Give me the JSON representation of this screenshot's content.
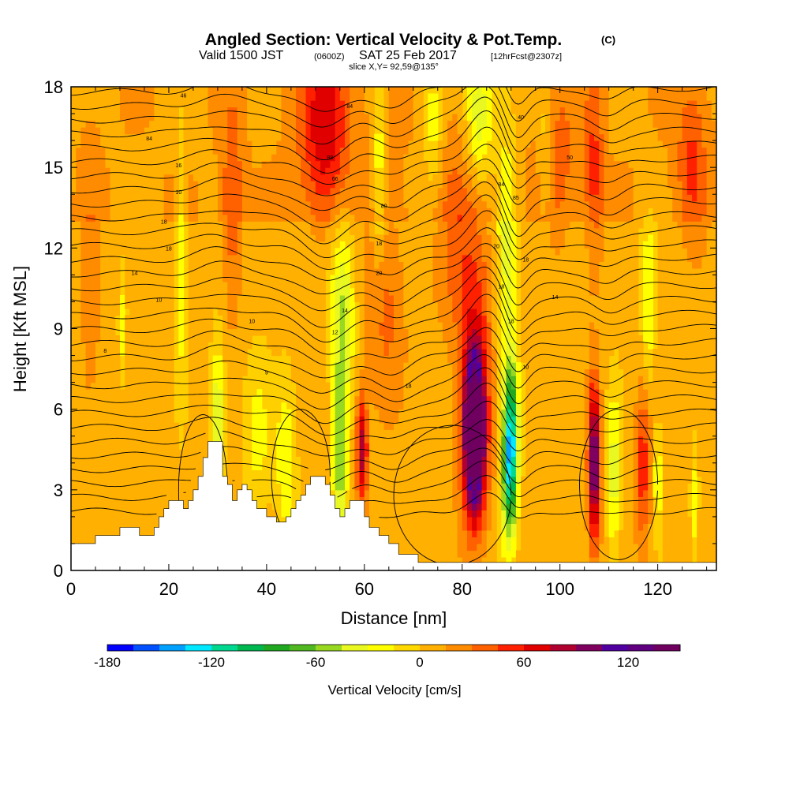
{
  "chart_data": {
    "type": "heatmap",
    "title": "Angled Section: Vertical Velocity & Pot.Temp.",
    "title_units": "(C)",
    "subtitle_main_a": "Valid 1500 JST",
    "subtitle_utc": "(0600Z)",
    "subtitle_main_b": "SAT 25 Feb 2017",
    "subtitle_fcst": "[12hrFcst@2307z]",
    "slice": "slice X,Y= 92,59@135°",
    "xlabel": "Distance [nm]",
    "ylabel": "Height [Kft MSL]",
    "xlim": [
      0,
      132
    ],
    "ylim": [
      0,
      18
    ],
    "xticks": [
      0,
      20,
      40,
      60,
      80,
      100,
      120
    ],
    "yticks": [
      0,
      3,
      6,
      9,
      12,
      15,
      18
    ],
    "colorbar": {
      "label": "Vertical Velocity [cm/s]",
      "min": -180,
      "max": 150,
      "step": 15,
      "tick_values": [
        -180,
        -120,
        -60,
        0,
        60,
        120
      ],
      "tick_labels": [
        "-180",
        "-120",
        "-60",
        "0",
        "60",
        "120"
      ],
      "colors": [
        "#0000ff",
        "#0050ff",
        "#00a0ff",
        "#00e8ff",
        "#00d890",
        "#00b850",
        "#20a820",
        "#50b820",
        "#98d820",
        "#e8f820",
        "#ffff00",
        "#ffd800",
        "#ffb000",
        "#ff8c00",
        "#ff6000",
        "#ff2000",
        "#e00000",
        "#b00030",
        "#800060",
        "#5000a0",
        "#600080",
        "#700060"
      ]
    },
    "terrain_profile": [
      [
        0,
        1.0
      ],
      [
        5,
        1.0
      ],
      [
        5,
        1.3
      ],
      [
        10,
        1.3
      ],
      [
        10,
        1.6
      ],
      [
        14,
        1.6
      ],
      [
        14,
        1.3
      ],
      [
        17,
        1.3
      ],
      [
        17,
        1.6
      ],
      [
        18,
        1.6
      ],
      [
        18,
        2.0
      ],
      [
        19,
        2.0
      ],
      [
        19,
        2.3
      ],
      [
        20,
        2.3
      ],
      [
        20,
        2.6
      ],
      [
        23,
        2.6
      ],
      [
        23,
        2.3
      ],
      [
        24,
        2.3
      ],
      [
        24,
        2.6
      ],
      [
        25,
        2.6
      ],
      [
        25,
        3.0
      ],
      [
        26,
        3.0
      ],
      [
        26,
        3.5
      ],
      [
        27,
        3.5
      ],
      [
        27,
        4.2
      ],
      [
        28,
        4.2
      ],
      [
        28,
        4.8
      ],
      [
        31,
        4.8
      ],
      [
        31,
        3.5
      ],
      [
        32,
        3.5
      ],
      [
        32,
        3.2
      ],
      [
        33,
        3.2
      ],
      [
        33,
        2.6
      ],
      [
        34,
        2.6
      ],
      [
        34,
        3.0
      ],
      [
        35,
        3.0
      ],
      [
        35,
        3.2
      ],
      [
        36,
        3.2
      ],
      [
        36,
        3.0
      ],
      [
        37,
        3.0
      ],
      [
        37,
        2.6
      ],
      [
        38,
        2.6
      ],
      [
        38,
        2.3
      ],
      [
        40,
        2.3
      ],
      [
        40,
        2.0
      ],
      [
        42,
        2.0
      ],
      [
        42,
        1.8
      ],
      [
        44,
        1.8
      ],
      [
        44,
        2.0
      ],
      [
        45,
        2.0
      ],
      [
        45,
        2.3
      ],
      [
        46,
        2.3
      ],
      [
        46,
        2.6
      ],
      [
        47,
        2.6
      ],
      [
        47,
        2.8
      ],
      [
        48,
        2.8
      ],
      [
        48,
        3.2
      ],
      [
        49,
        3.2
      ],
      [
        49,
        3.5
      ],
      [
        52,
        3.5
      ],
      [
        52,
        3.2
      ],
      [
        53,
        3.2
      ],
      [
        53,
        2.8
      ],
      [
        54,
        2.8
      ],
      [
        54,
        2.3
      ],
      [
        55,
        2.3
      ],
      [
        55,
        2.0
      ],
      [
        56,
        2.0
      ],
      [
        56,
        2.3
      ],
      [
        57,
        2.3
      ],
      [
        57,
        2.6
      ],
      [
        60,
        2.6
      ],
      [
        60,
        2.0
      ],
      [
        61,
        2.0
      ],
      [
        61,
        1.6
      ],
      [
        63,
        1.6
      ],
      [
        63,
        1.3
      ],
      [
        65,
        1.3
      ],
      [
        65,
        1.0
      ],
      [
        67,
        1.0
      ],
      [
        67,
        0.6
      ],
      [
        71,
        0.6
      ],
      [
        71,
        0.3
      ],
      [
        132,
        0.3
      ]
    ],
    "vertical_velocity_features": [
      {
        "x": 82.5,
        "z": 5.0,
        "wx": 1.6,
        "wz": 2.4,
        "w": 150
      },
      {
        "x": 82.5,
        "z": 5.5,
        "wx": 3.0,
        "wz": 4.0,
        "w": 90
      },
      {
        "x": 81.0,
        "z": 12.0,
        "wx": 6.0,
        "wz": 4.0,
        "w": 35
      },
      {
        "x": 90.0,
        "z": 5.0,
        "wx": 1.4,
        "wz": 2.6,
        "w": -110
      },
      {
        "x": 89.5,
        "z": 3.0,
        "wx": 1.6,
        "wz": 2.6,
        "w": -60
      },
      {
        "x": 89.0,
        "z": 12.0,
        "wx": 2.2,
        "wz": 6.0,
        "w": -45
      },
      {
        "x": 83.5,
        "z": 17.0,
        "wx": 3.0,
        "wz": 3.0,
        "w": -60
      },
      {
        "x": 107.0,
        "z": 4.0,
        "wx": 1.2,
        "wz": 3.0,
        "w": 110
      },
      {
        "x": 107.0,
        "z": 15.0,
        "wx": 1.8,
        "wz": 4.0,
        "w": 35
      },
      {
        "x": 111.0,
        "z": 3.5,
        "wx": 1.4,
        "wz": 3.0,
        "w": -45
      },
      {
        "x": 117.0,
        "z": 4.0,
        "wx": 1.6,
        "wz": 3.0,
        "w": 50
      },
      {
        "x": 120.0,
        "z": 3.5,
        "wx": 1.0,
        "wz": 2.0,
        "w": -35
      },
      {
        "x": 127.5,
        "z": 2.5,
        "wx": 0.8,
        "wz": 1.8,
        "w": -35
      },
      {
        "x": 118.0,
        "z": 10.0,
        "wx": 1.4,
        "wz": 3.5,
        "w": -35
      },
      {
        "x": 52.0,
        "z": 16.5,
        "wx": 5.0,
        "wz": 3.5,
        "w": 60
      },
      {
        "x": 55.0,
        "z": 4.0,
        "wx": 1.5,
        "wz": 4.0,
        "w": -60
      },
      {
        "x": 55.5,
        "z": 10.0,
        "wx": 2.5,
        "wz": 3.5,
        "w": -50
      },
      {
        "x": 59.5,
        "z": 4.5,
        "wx": 1.2,
        "wz": 2.0,
        "w": 80
      },
      {
        "x": 64.0,
        "z": 10.0,
        "wx": 4.0,
        "wz": 4.0,
        "w": 30
      },
      {
        "x": 63.0,
        "z": 15.0,
        "wx": 1.4,
        "wz": 4.0,
        "w": -40
      },
      {
        "x": 44.0,
        "z": 4.0,
        "wx": 2.0,
        "wz": 3.0,
        "w": -35
      },
      {
        "x": 38.0,
        "z": 5.0,
        "wx": 3.0,
        "wz": 3.0,
        "w": -25
      },
      {
        "x": 30.0,
        "z": 5.5,
        "wx": 1.5,
        "wz": 3.0,
        "w": -55
      },
      {
        "x": 33.0,
        "z": 13.5,
        "wx": 2.0,
        "wz": 4.0,
        "w": 35
      },
      {
        "x": 22.5,
        "z": 12.0,
        "wx": 1.0,
        "wz": 5.0,
        "w": -35
      },
      {
        "x": 10.5,
        "z": 9.0,
        "wx": 0.8,
        "wz": 2.0,
        "w": -30
      },
      {
        "x": 4.0,
        "z": 10.0,
        "wx": 2.0,
        "wz": 5.0,
        "w": 20
      },
      {
        "x": 127.0,
        "z": 15.0,
        "wx": 3.0,
        "wz": 3.0,
        "w": 35
      },
      {
        "x": 100.0,
        "z": 15.0,
        "wx": 4.0,
        "wz": 4.0,
        "w": 20
      },
      {
        "x": 74.0,
        "z": 16.5,
        "wx": 2.0,
        "wz": 3.0,
        "w": -35
      },
      {
        "x": 97.0,
        "z": 16.0,
        "wx": 1.4,
        "wz": 3.0,
        "w": -25
      }
    ],
    "isentrope_labels": [
      {
        "x": 7,
        "z": 8.1,
        "text": "8"
      },
      {
        "x": 18,
        "z": 10.0,
        "text": "10"
      },
      {
        "x": 13,
        "z": 11.0,
        "text": "14"
      },
      {
        "x": 20,
        "z": 11.9,
        "text": "18"
      },
      {
        "x": 19,
        "z": 12.9,
        "text": "18"
      },
      {
        "x": 22,
        "z": 14.0,
        "text": "10"
      },
      {
        "x": 22,
        "z": 15.0,
        "text": "16"
      },
      {
        "x": 16,
        "z": 16.0,
        "text": "84"
      },
      {
        "x": 23,
        "z": 17.6,
        "text": "46"
      },
      {
        "x": 37,
        "z": 9.2,
        "text": "10"
      },
      {
        "x": 40,
        "z": 7.3,
        "text": "9"
      },
      {
        "x": 54,
        "z": 8.8,
        "text": "12"
      },
      {
        "x": 56,
        "z": 9.6,
        "text": "14"
      },
      {
        "x": 63,
        "z": 11.0,
        "text": "20"
      },
      {
        "x": 63,
        "z": 12.1,
        "text": "18"
      },
      {
        "x": 64,
        "z": 13.5,
        "text": "80"
      },
      {
        "x": 54,
        "z": 14.5,
        "text": "66"
      },
      {
        "x": 53,
        "z": 15.3,
        "text": "88"
      },
      {
        "x": 57,
        "z": 17.2,
        "text": "84"
      },
      {
        "x": 69,
        "z": 6.8,
        "text": "18"
      },
      {
        "x": 88,
        "z": 10.5,
        "text": "18"
      },
      {
        "x": 90,
        "z": 9.2,
        "text": "18"
      },
      {
        "x": 93,
        "z": 7.5,
        "text": "10"
      },
      {
        "x": 87,
        "z": 12.0,
        "text": "20"
      },
      {
        "x": 88,
        "z": 14.3,
        "text": "84"
      },
      {
        "x": 91,
        "z": 13.8,
        "text": "85"
      },
      {
        "x": 93,
        "z": 11.5,
        "text": "18"
      },
      {
        "x": 99,
        "z": 10.1,
        "text": "14"
      },
      {
        "x": 92,
        "z": 16.8,
        "text": "40"
      },
      {
        "x": 102,
        "z": 15.3,
        "text": "50"
      }
    ]
  }
}
